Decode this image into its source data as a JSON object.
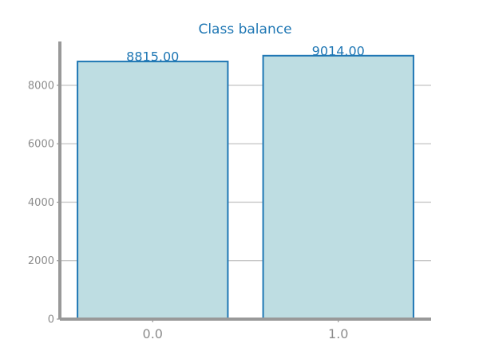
{
  "chart_data": {
    "type": "bar",
    "title": "Class balance",
    "xlabel": "",
    "ylabel": "",
    "categories": [
      "0.0",
      "1.0"
    ],
    "values": [
      8815.0,
      9014.0
    ],
    "value_labels": [
      "8815.00",
      "9014.00"
    ],
    "ylim": [
      0,
      9500
    ],
    "yticks": [
      0,
      2000,
      4000,
      6000,
      8000
    ],
    "ytick_labels": [
      "0",
      "2000",
      "4000",
      "6000",
      "8000"
    ],
    "grid": "horizontal",
    "legend": "none"
  },
  "colors": {
    "title": "#1f77b4",
    "bar_fill": "#bedde2",
    "bar_edge": "#1f77b4",
    "value_label": "#1f77b4",
    "axis": "#999999",
    "grid": "#c8c8c8",
    "tick_label": "#8c8c8c"
  }
}
